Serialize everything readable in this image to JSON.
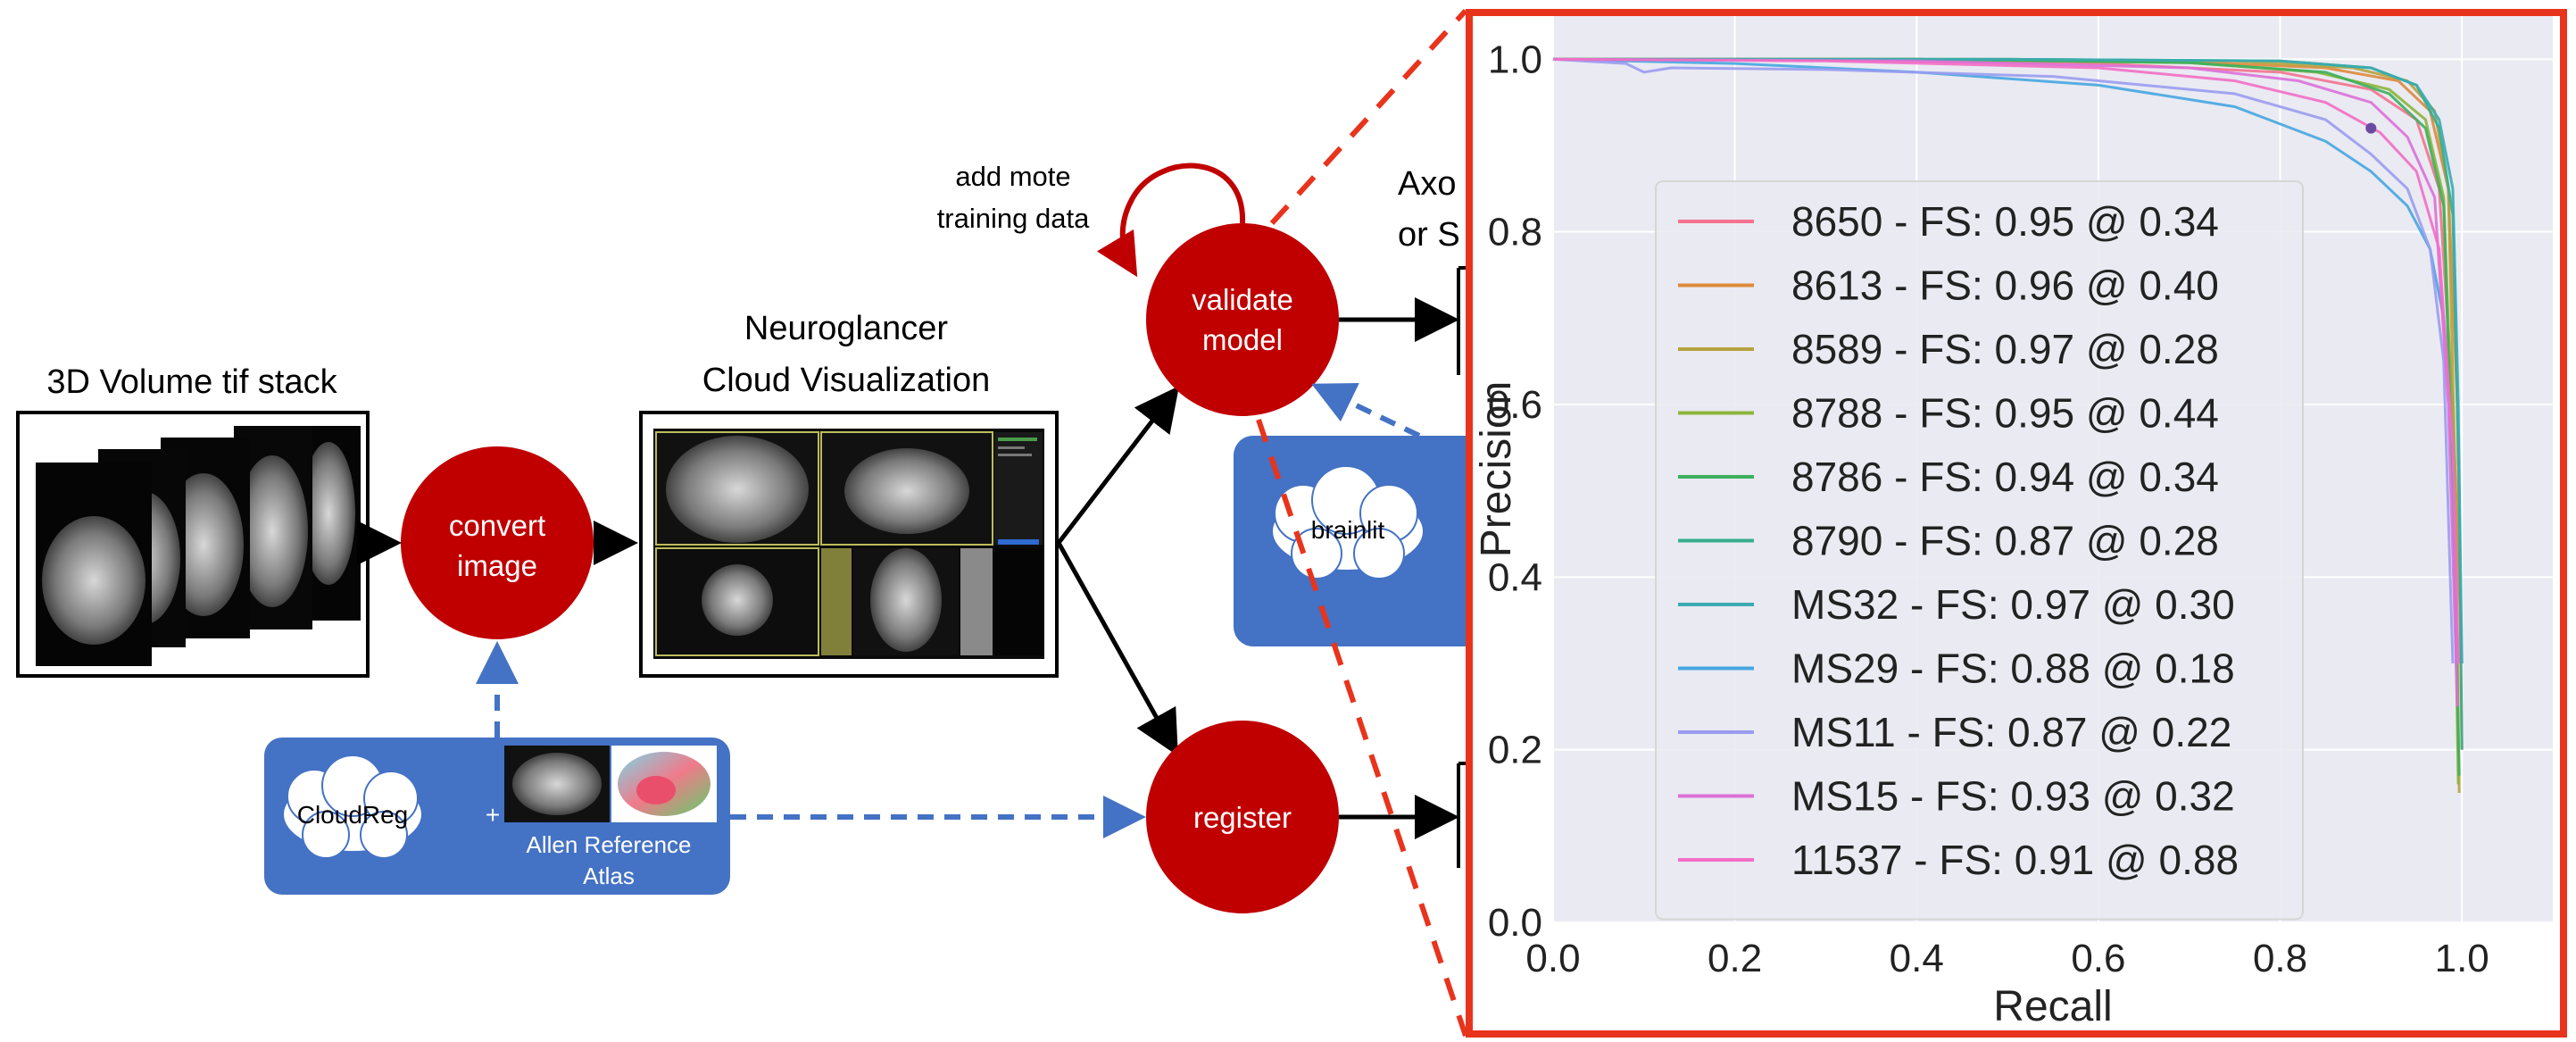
{
  "pipeline": {
    "volume_title": "3D Volume tif stack",
    "neuroglancer_title_1": "Neuroglancer",
    "neuroglancer_title_2": "Cloud Visualization",
    "convert_1": "convert",
    "convert_2": "image",
    "validate_1": "validate",
    "validate_2": "model",
    "register": "register",
    "loop_1": "add mote",
    "loop_2": "training data",
    "partial_1": "Axo",
    "partial_2": "or S",
    "cloudreg": "CloudReg",
    "plus": "+",
    "atlas_1": "Allen Reference",
    "atlas_2": "Atlas",
    "brainlit": "brainlit"
  },
  "colors": {
    "node_red": "#c00000",
    "panel_blue": "#4472c4",
    "highlight_red": "#e8341c",
    "plot_bg": "#eaeaf2"
  },
  "chart_data": {
    "type": "line",
    "title": "",
    "xlabel": "Recall",
    "ylabel": "Precision",
    "xlim": [
      0.0,
      1.1
    ],
    "ylim": [
      0.0,
      1.05
    ],
    "xticks": [
      "0.0",
      "0.2",
      "0.4",
      "0.6",
      "0.8",
      "1.0"
    ],
    "yticks": [
      "0.0",
      "0.2",
      "0.4",
      "0.6",
      "0.8",
      "1.0"
    ],
    "grid": true,
    "legend_position": "center-left",
    "series": [
      {
        "name": "8650 - FS: 0.95 @ 0.34",
        "color": "#f4728f",
        "x": [
          0,
          0.3,
          0.6,
          0.8,
          0.9,
          0.95,
          0.975,
          0.99,
          1.0
        ],
        "y": [
          1.0,
          0.999,
          0.995,
          0.985,
          0.965,
          0.93,
          0.85,
          0.6,
          0.3
        ]
      },
      {
        "name": "8613 - FS: 0.96 @ 0.40",
        "color": "#dd8a3b",
        "x": [
          0,
          0.4,
          0.7,
          0.85,
          0.93,
          0.965,
          0.985,
          0.995,
          1.0
        ],
        "y": [
          1.0,
          1.0,
          0.997,
          0.99,
          0.975,
          0.94,
          0.85,
          0.6,
          0.2
        ]
      },
      {
        "name": "8589 - FS: 0.97 @ 0.28",
        "color": "#b5a33e",
        "x": [
          0,
          0.5,
          0.75,
          0.88,
          0.94,
          0.97,
          0.985,
          0.993,
          0.997
        ],
        "y": [
          1.0,
          1.0,
          0.998,
          0.99,
          0.975,
          0.94,
          0.85,
          0.5,
          0.15
        ]
      },
      {
        "name": "8788 - FS: 0.95 @ 0.44",
        "color": "#8db43a",
        "x": [
          0,
          0.4,
          0.7,
          0.84,
          0.92,
          0.96,
          0.98,
          0.99,
          0.996
        ],
        "y": [
          1.0,
          1.0,
          0.996,
          0.985,
          0.965,
          0.93,
          0.84,
          0.55,
          0.16
        ]
      },
      {
        "name": "8786 - FS: 0.94 @ 0.34",
        "color": "#3cb05c",
        "x": [
          0,
          0.4,
          0.7,
          0.85,
          0.92,
          0.96,
          0.98,
          0.99,
          0.997
        ],
        "y": [
          1.0,
          1.0,
          0.996,
          0.985,
          0.96,
          0.92,
          0.83,
          0.5,
          0.17
        ]
      },
      {
        "name": "8790 - FS: 0.87 @ 0.28",
        "color": "#36ad8e",
        "x": [
          0,
          0.5,
          0.8,
          0.9,
          0.95,
          0.975,
          0.99,
          0.997,
          1.0
        ],
        "y": [
          1.0,
          1.0,
          0.998,
          0.99,
          0.97,
          0.92,
          0.82,
          0.5,
          0.2
        ]
      },
      {
        "name": "MS32 - FS: 0.97 @ 0.30",
        "color": "#3aabb0",
        "x": [
          0,
          0.5,
          0.8,
          0.9,
          0.95,
          0.975,
          0.99,
          0.996,
          1.0
        ],
        "y": [
          1.0,
          1.0,
          0.998,
          0.99,
          0.97,
          0.93,
          0.85,
          0.6,
          0.3
        ]
      },
      {
        "name": "MS29 - FS: 0.88 @ 0.18",
        "color": "#46a6e0",
        "x": [
          0,
          0.2,
          0.4,
          0.6,
          0.75,
          0.85,
          0.9,
          0.94,
          0.965,
          0.98,
          0.99,
          0.995
        ],
        "y": [
          1.0,
          0.995,
          0.985,
          0.97,
          0.945,
          0.905,
          0.87,
          0.83,
          0.78,
          0.7,
          0.55,
          0.3
        ]
      },
      {
        "name": "MS11 - FS: 0.87 @ 0.22",
        "color": "#9a9cf0",
        "x": [
          0,
          0.08,
          0.1,
          0.13,
          0.3,
          0.55,
          0.75,
          0.85,
          0.9,
          0.94,
          0.965,
          0.98,
          0.99
        ],
        "y": [
          1.0,
          0.995,
          0.985,
          0.99,
          0.988,
          0.98,
          0.96,
          0.93,
          0.89,
          0.85,
          0.78,
          0.65,
          0.3
        ]
      },
      {
        "name": "MS15 - FS: 0.93 @ 0.32",
        "color": "#dc70d8",
        "x": [
          0,
          0.4,
          0.7,
          0.82,
          0.9,
          0.94,
          0.97,
          0.985,
          0.995
        ],
        "y": [
          1.0,
          0.998,
          0.99,
          0.975,
          0.95,
          0.91,
          0.84,
          0.6,
          0.25
        ]
      },
      {
        "name": "11537 - FS: 0.91 @ 0.88",
        "color": "#f26ec4",
        "x": [
          0,
          0.3,
          0.6,
          0.75,
          0.85,
          0.91,
          0.95,
          0.975,
          0.99,
          0.996
        ],
        "y": [
          1.0,
          0.998,
          0.99,
          0.975,
          0.95,
          0.915,
          0.87,
          0.78,
          0.55,
          0.3
        ]
      }
    ],
    "annotation_point": {
      "x": 0.9,
      "y": 0.92,
      "color": "#6a4aa0"
    }
  }
}
